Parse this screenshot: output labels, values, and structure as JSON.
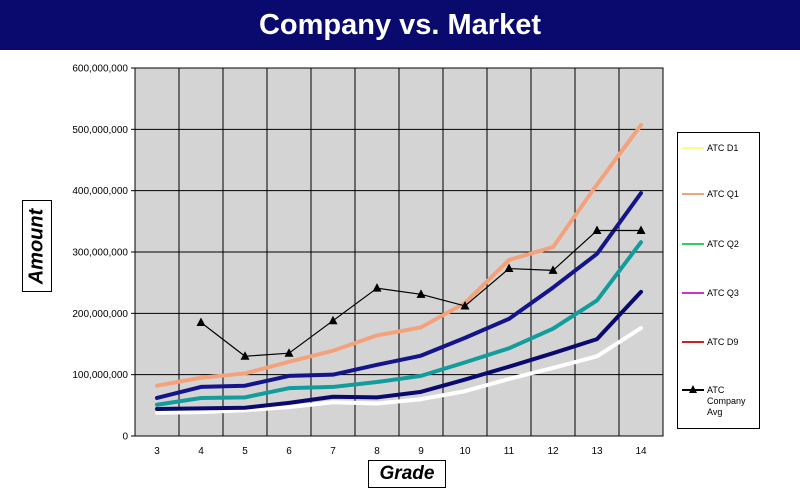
{
  "title": "Company vs. Market",
  "chart_data": {
    "type": "line",
    "title": "Company vs. Market",
    "xlabel": "Grade",
    "ylabel": "Amount",
    "x": [
      3,
      4,
      5,
      6,
      7,
      8,
      9,
      10,
      11,
      12,
      13,
      14
    ],
    "ylim": [
      0,
      600000000
    ],
    "yticks": [
      0,
      100000000,
      200000000,
      300000000,
      400000000,
      500000000,
      600000000
    ],
    "ytick_labels": [
      "0",
      "100,000,000",
      "200,000,000",
      "300,000,000",
      "400,000,000",
      "500,000,000",
      "600,000,000"
    ],
    "grid": true,
    "legend_position": "right",
    "plot_background": "#d4d4d4",
    "series": [
      {
        "name": "ATC D1",
        "legend_color": "#ffff80",
        "color": "#ffffff",
        "marker": "none",
        "values": [
          38000000,
          39000000,
          42000000,
          47000000,
          55000000,
          53000000,
          60000000,
          73000000,
          93000000,
          111000000,
          130000000,
          176000000
        ]
      },
      {
        "name": "ATC Q1",
        "legend_color": "#f4a27c",
        "color": "#f4a27c",
        "marker": "none",
        "values": [
          82000000,
          95000000,
          102000000,
          121000000,
          139000000,
          164000000,
          177000000,
          217000000,
          287000000,
          308000000,
          410000000,
          507000000
        ]
      },
      {
        "name": "ATC Q2",
        "legend_color": "#33cc66",
        "color": "#139c9c",
        "marker": "none",
        "values": [
          51000000,
          62000000,
          63000000,
          78000000,
          80000000,
          88000000,
          98000000,
          120000000,
          143000000,
          175000000,
          221000000,
          316000000
        ]
      },
      {
        "name": "ATC Q3",
        "legend_color": "#cc33cc",
        "color": "#14148c",
        "marker": "none",
        "values": [
          62000000,
          80000000,
          82000000,
          98000000,
          100000000,
          116000000,
          131000000,
          160000000,
          191000000,
          242000000,
          297000000,
          396000000
        ]
      },
      {
        "name": "ATC D9",
        "legend_color": "#cc2222",
        "color": "#0a0a6e",
        "marker": "none",
        "values": [
          44000000,
          45000000,
          46000000,
          54000000,
          64000000,
          63000000,
          72000000,
          92000000,
          113000000,
          135000000,
          158000000,
          235000000
        ]
      },
      {
        "name": "ATC Company Avg",
        "legend_color": "#000000",
        "color": "#000000",
        "marker": "triangle",
        "values": [
          null,
          185000000,
          130000000,
          135000000,
          188000000,
          241000000,
          231000000,
          212000000,
          273000000,
          270000000,
          335000000,
          335000000
        ]
      }
    ]
  },
  "legend": {
    "items": [
      {
        "label": "ATC D1"
      },
      {
        "label": "ATC Q1"
      },
      {
        "label": "ATC Q2"
      },
      {
        "label": "ATC Q3"
      },
      {
        "label": "ATC D9"
      },
      {
        "label_lines": [
          "ATC",
          "Company",
          "Avg"
        ]
      }
    ]
  }
}
